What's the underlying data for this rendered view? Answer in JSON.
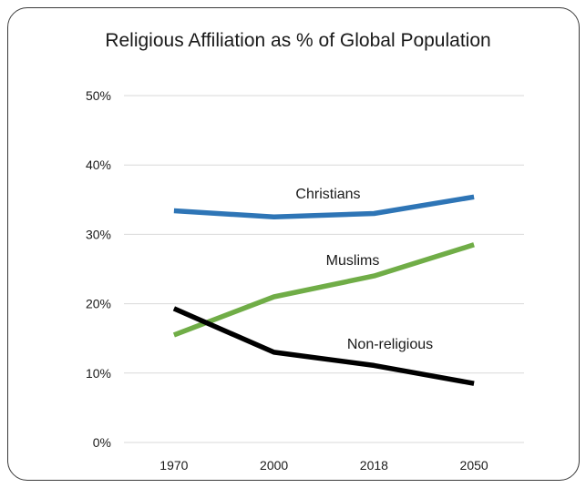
{
  "chart_data": {
    "type": "line",
    "title": "Religious Affiliation as % of Global Population",
    "xlabel": "",
    "ylabel": "",
    "categories": [
      "1970",
      "2000",
      "2018",
      "2050"
    ],
    "y_ticks": [
      "0%",
      "10%",
      "20%",
      "30%",
      "40%",
      "50%"
    ],
    "ylim": [
      0,
      50
    ],
    "grid": true,
    "legend": "none (series labeled inline)",
    "series": [
      {
        "name": "Christians",
        "values": [
          33.4,
          32.5,
          33.0,
          35.4
        ],
        "color": "#2e75b6"
      },
      {
        "name": "Muslims",
        "values": [
          15.5,
          21.0,
          24.0,
          28.5
        ],
        "color": "#70ad47"
      },
      {
        "name": "Non-religious",
        "values": [
          19.3,
          13.0,
          11.1,
          8.5
        ],
        "color": "#000000"
      }
    ]
  }
}
